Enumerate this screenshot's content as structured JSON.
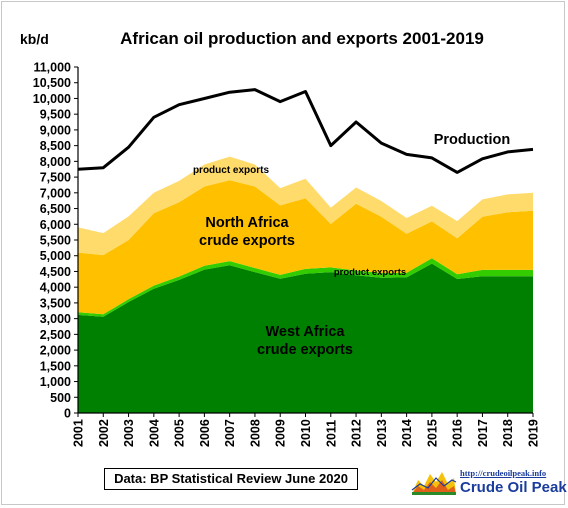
{
  "chart_data": {
    "type": "area",
    "title": "African oil production and exports 2001-2019",
    "ylabel": "kb/d",
    "x": [
      2001,
      2002,
      2003,
      2004,
      2005,
      2006,
      2007,
      2008,
      2009,
      2010,
      2011,
      2012,
      2013,
      2014,
      2015,
      2016,
      2017,
      2018,
      2019
    ],
    "ylim": [
      0,
      11000
    ],
    "yticks": [
      "0",
      "500",
      "1,000",
      "1,500",
      "2,000",
      "2,500",
      "3,000",
      "3,500",
      "4,000",
      "4,500",
      "5,000",
      "5,500",
      "6,000",
      "6,500",
      "7,000",
      "7,500",
      "8,000",
      "8,500",
      "9,000",
      "9,500",
      "10,000",
      "10,500",
      "11,000"
    ],
    "stacked": true,
    "series": [
      {
        "key": "west-africa-crude-exports",
        "label_lines": [
          "West Africa",
          "crude exports"
        ],
        "color": "#008000",
        "values": [
          3120,
          3060,
          3530,
          3950,
          4230,
          4560,
          4700,
          4480,
          4270,
          4430,
          4480,
          4380,
          4300,
          4310,
          4750,
          4260,
          4350,
          4350,
          4350
        ]
      },
      {
        "key": "west-africa-product-exports",
        "label": "product exports",
        "color": "#33cc00",
        "values": [
          80,
          80,
          90,
          100,
          110,
          120,
          130,
          130,
          120,
          150,
          150,
          150,
          150,
          150,
          170,
          150,
          200,
          200,
          200
        ]
      },
      {
        "key": "north-africa-crude-exports",
        "label_lines": [
          "North Africa",
          "crude exports"
        ],
        "color": "#ffc000",
        "values": [
          1900,
          1880,
          1880,
          2300,
          2360,
          2520,
          2570,
          2590,
          2210,
          2250,
          1380,
          2120,
          1790,
          1240,
          1170,
          1140,
          1690,
          1830,
          1880
        ]
      },
      {
        "key": "north-africa-product-exports",
        "label": "product exports",
        "color": "#ffdb6b",
        "values": [
          800,
          700,
          750,
          650,
          680,
          700,
          750,
          700,
          550,
          620,
          520,
          520,
          500,
          500,
          500,
          550,
          550,
          570,
          570
        ]
      }
    ],
    "line": {
      "key": "production",
      "label": "Production",
      "color": "#000000",
      "values": [
        7750,
        7800,
        8450,
        9400,
        9800,
        10000,
        10200,
        10280,
        9900,
        10220,
        8500,
        9250,
        8580,
        8220,
        8110,
        7650,
        8080,
        8300,
        8380
      ]
    },
    "grid": false
  },
  "footer": {
    "source": "Data: BP Statistical Review June 2020",
    "brand_url": "http://crudeoilpeak.info",
    "brand_name": "Crude Oil Peak"
  }
}
